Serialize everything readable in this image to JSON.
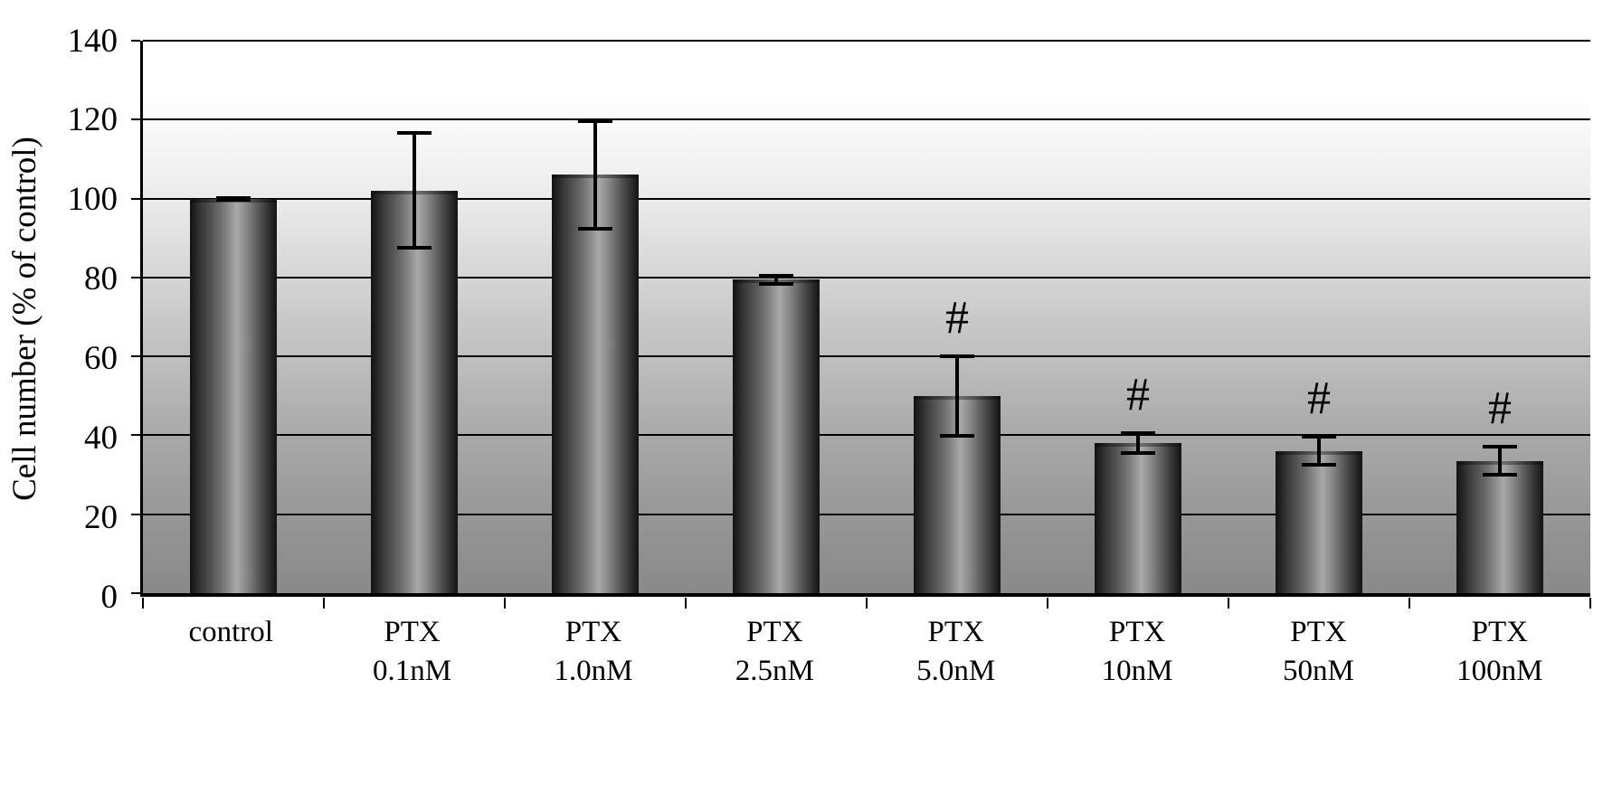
{
  "chart_data": {
    "type": "bar",
    "title": "",
    "xlabel": "",
    "ylabel": "Cell number (% of control)",
    "ylim": [
      0,
      140
    ],
    "yticks": [
      0,
      20,
      40,
      60,
      80,
      100,
      120,
      140
    ],
    "grid": true,
    "legend_position": "none",
    "categories": [
      "control",
      "PTX\n0.1nM",
      "PTX\n1.0nM",
      "PTX\n2.5nM",
      "PTX\n5.0nM",
      "PTX\n10nM",
      "PTX\n50nM",
      "PTX\n100nM"
    ],
    "values": [
      100,
      102,
      106,
      79.5,
      50,
      38,
      36,
      33.5
    ],
    "errors": [
      0.7,
      15,
      14,
      1.5,
      10.5,
      3,
      4,
      4
    ],
    "annotations": [
      "",
      "",
      "",
      "",
      "#",
      "#",
      "#",
      "#"
    ]
  },
  "colors": {
    "bar_edge": "#141414",
    "bar_highlight": "#a8a8a8",
    "plot_bg_top": "#ffffff",
    "plot_bg_bottom": "#8a8a8a",
    "gridline": "#000000",
    "axis": "#000000",
    "text": "#000000"
  }
}
